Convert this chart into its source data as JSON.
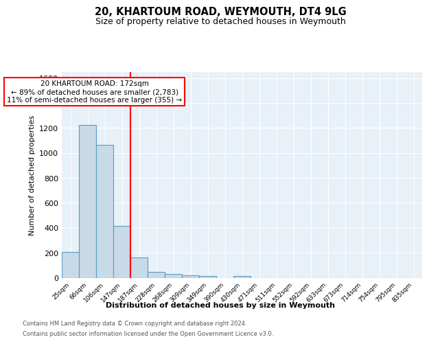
{
  "title": "20, KHARTOUM ROAD, WEYMOUTH, DT4 9LG",
  "subtitle": "Size of property relative to detached houses in Weymouth",
  "xlabel": "Distribution of detached houses by size in Weymouth",
  "ylabel": "Number of detached properties",
  "bin_labels": [
    "25sqm",
    "66sqm",
    "106sqm",
    "147sqm",
    "187sqm",
    "228sqm",
    "268sqm",
    "309sqm",
    "349sqm",
    "390sqm",
    "430sqm",
    "471sqm",
    "511sqm",
    "552sqm",
    "592sqm",
    "633sqm",
    "673sqm",
    "714sqm",
    "754sqm",
    "795sqm",
    "835sqm"
  ],
  "bin_values": [
    205,
    1225,
    1065,
    415,
    165,
    48,
    28,
    18,
    15,
    0,
    15,
    0,
    0,
    0,
    0,
    0,
    0,
    0,
    0,
    0,
    0
  ],
  "bar_color": "#c8d9e8",
  "bar_edge_color": "#5a9bc4",
  "vline_color": "red",
  "annotation_text": "20 KHARTOUM ROAD: 172sqm\n← 89% of detached houses are smaller (2,783)\n11% of semi-detached houses are larger (355) →",
  "annotation_box_color": "white",
  "annotation_box_edge": "red",
  "ylim": [
    0,
    1650
  ],
  "yticks": [
    0,
    200,
    400,
    600,
    800,
    1000,
    1200,
    1400,
    1600
  ],
  "background_color": "#e8f0f8",
  "footer_line1": "Contains HM Land Registry data © Crown copyright and database right 2024.",
  "footer_line2": "Contains public sector information licensed under the Open Government Licence v3.0."
}
